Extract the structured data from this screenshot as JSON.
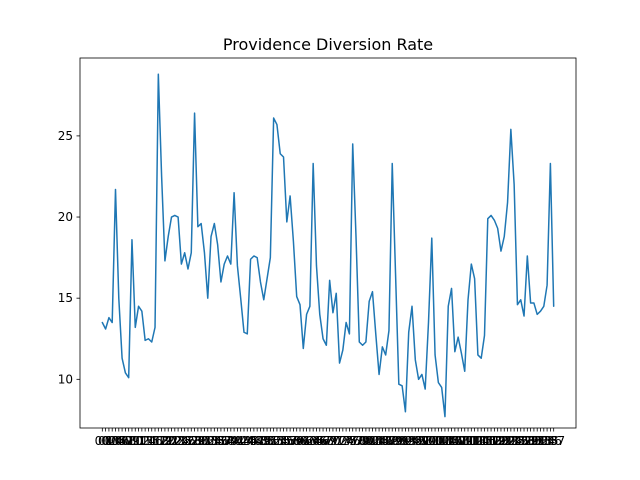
{
  "chart_data": {
    "type": "line",
    "title": "Providence Diversion Rate",
    "xlabel": "",
    "ylabel": "",
    "grid": false,
    "legend": "none",
    "ylim": [
      7.0,
      29.8
    ],
    "yticks": [
      10,
      15,
      20,
      25
    ],
    "line_color": "#1f77b4",
    "series": [
      {
        "values": [
          13.5,
          13.1,
          13.8,
          13.5,
          21.7,
          15.0,
          11.3,
          10.4,
          10.1,
          18.6,
          13.2,
          14.5,
          14.2,
          12.4,
          12.5,
          12.3,
          13.2,
          28.8,
          22.5,
          17.3,
          18.8,
          20.0,
          20.1,
          20.0,
          17.1,
          17.8,
          16.8,
          17.8,
          26.4,
          19.4,
          19.6,
          17.8,
          15.0,
          18.8,
          19.6,
          18.3,
          16.0,
          17.1,
          17.6,
          17.1,
          21.5,
          17.0,
          15.0,
          12.9,
          12.8,
          17.4,
          17.6,
          17.5,
          16.0,
          14.9,
          16.2,
          17.5,
          26.1,
          25.7,
          23.9,
          23.7,
          19.7,
          21.3,
          18.5,
          15.1,
          14.6,
          11.9,
          14.0,
          14.5,
          23.3,
          17.0,
          14.0,
          12.5,
          12.1,
          16.1,
          14.1,
          15.3,
          11.0,
          11.8,
          13.5,
          12.8,
          24.5,
          18.8,
          12.3,
          12.1,
          12.3,
          14.8,
          15.4,
          12.8,
          10.3,
          12.0,
          11.5,
          13.0,
          23.3,
          16.5,
          9.7,
          9.6,
          8.0,
          12.9,
          14.5,
          11.2,
          10.0,
          10.3,
          9.4,
          13.5,
          18.7,
          11.5,
          9.8,
          9.5,
          7.7,
          14.5,
          15.6,
          11.7,
          12.6,
          11.6,
          10.5,
          14.9,
          17.1,
          16.2,
          11.5,
          11.3,
          12.7,
          19.9,
          20.1,
          19.8,
          19.3,
          17.9,
          18.8,
          20.9,
          25.4,
          22.0,
          14.6,
          14.9,
          13.9,
          17.6,
          14.7,
          14.7,
          14.0,
          14.2,
          14.5,
          15.8,
          23.3,
          14.5
        ]
      }
    ]
  }
}
